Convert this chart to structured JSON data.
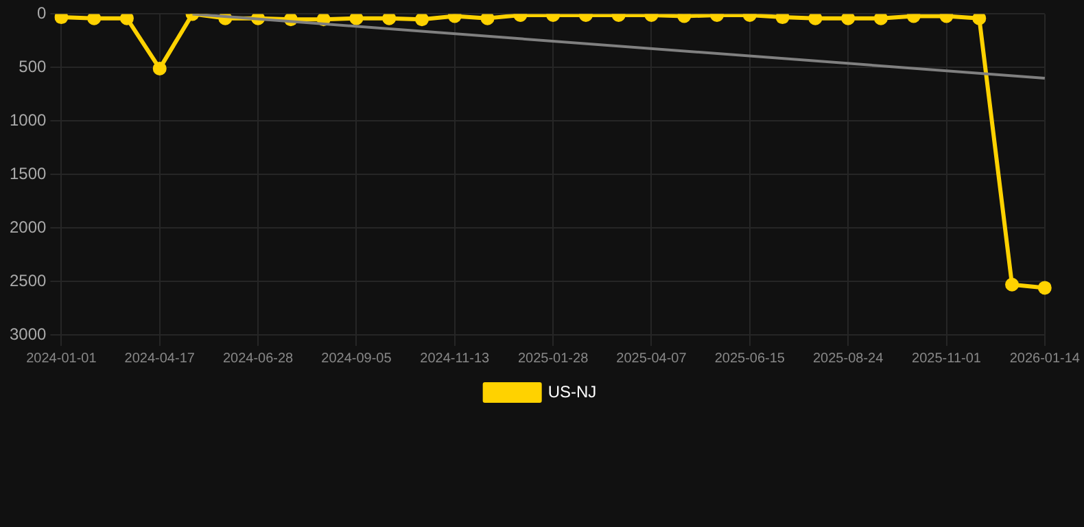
{
  "chart_data": {
    "type": "line",
    "categories": [
      "2024-01-01",
      null,
      null,
      "2024-04-17",
      null,
      null,
      "2024-06-28",
      null,
      null,
      "2024-09-05",
      null,
      null,
      "2024-11-13",
      null,
      null,
      "2025-01-28",
      null,
      null,
      "2025-04-07",
      null,
      null,
      "2025-06-15",
      null,
      null,
      "2025-08-24",
      null,
      null,
      "2025-11-01",
      null,
      null,
      "2026-01-14"
    ],
    "series": [
      {
        "name": "US-NJ",
        "color": "#ffd200",
        "marker": "circle",
        "values": [
          30,
          40,
          40,
          510,
          0,
          40,
          40,
          50,
          50,
          40,
          40,
          50,
          20,
          40,
          10,
          10,
          10,
          10,
          10,
          20,
          10,
          10,
          30,
          40,
          40,
          40,
          20,
          20,
          40,
          2530,
          2560
        ]
      },
      {
        "type": "line",
        "color": "#808080",
        "marker": "none",
        "values": [
          null,
          null,
          null,
          null,
          0,
          null,
          null,
          null,
          null,
          null,
          null,
          null,
          null,
          null,
          null,
          null,
          null,
          null,
          null,
          null,
          null,
          null,
          null,
          null,
          null,
          null,
          null,
          null,
          null,
          null,
          600
        ]
      }
    ],
    "ylim": [
      3000,
      0
    ],
    "yticks": [
      0,
      500,
      1000,
      1500,
      2000,
      2500,
      3000
    ],
    "grid": true,
    "legend": "bottom",
    "line_style": "solid"
  }
}
